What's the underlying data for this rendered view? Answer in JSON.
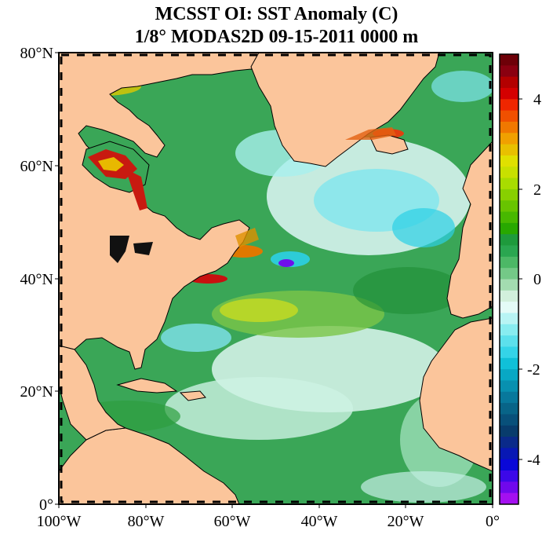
{
  "title": {
    "line1": "MCSST OI:  SST Anomaly (C)",
    "line2": "1/8° MODAS2D 09-15-2011 0000 m"
  },
  "map": {
    "lat_labels": [
      "80°N",
      "60°N",
      "40°N",
      "20°N",
      "0°"
    ],
    "lon_labels": [
      "100°W",
      "80°W",
      "60°W",
      "40°W",
      "20°W",
      "0°"
    ],
    "extent": {
      "lon": [
        -100,
        0
      ],
      "lat": [
        0,
        80
      ]
    },
    "colors": {
      "land": "#fbc59b",
      "ocean_base": "#3aa657",
      "coast": "#000000"
    }
  },
  "colorbar": {
    "range": [
      -5,
      5
    ],
    "tick_labels": [
      "4",
      "2",
      "0",
      "-2",
      "-4"
    ],
    "colors": [
      "#6e0008",
      "#8a0010",
      "#b30000",
      "#d40000",
      "#ef2600",
      "#f05000",
      "#f07800",
      "#f0a000",
      "#e8c000",
      "#e0e000",
      "#c8e000",
      "#a8dc00",
      "#88d000",
      "#68c400",
      "#48b800",
      "#28a800",
      "#1e9a3c",
      "#2aa650",
      "#4cb866",
      "#74c987",
      "#a3dcb0",
      "#d2f0dc",
      "#e4fbf7",
      "#b8f4f4",
      "#88ecf0",
      "#5ce0ec",
      "#34d4e8",
      "#10c0d8",
      "#08a8c4",
      "#0890b0",
      "#08789c",
      "#086488",
      "#08507a",
      "#083c6c",
      "#0a2a8a",
      "#0818b4",
      "#0a08d8",
      "#3c08e8",
      "#7008ec",
      "#a410f0"
    ]
  }
}
